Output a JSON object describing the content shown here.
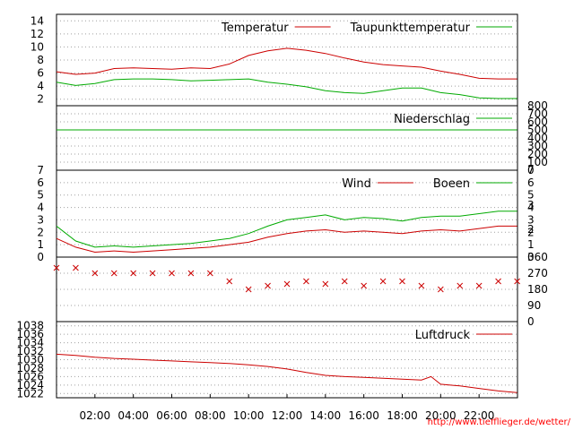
{
  "credit": "http://www.tiefflieger.de/wetter/",
  "colors": {
    "red": "#cc0000",
    "green": "#00aa00",
    "frame": "#000000",
    "grid": "#a0a0a0",
    "credit": "#ff0000"
  },
  "chart_data": [
    {
      "type": "line",
      "grid": true,
      "legend_position": "top-right",
      "ylim": [
        1,
        15
      ],
      "yticks": [
        "2",
        "4",
        "6",
        "8",
        "10",
        "12",
        "14"
      ],
      "x": [
        "00:00",
        "01:00",
        "02:00",
        "03:00",
        "04:00",
        "05:00",
        "06:00",
        "07:00",
        "08:00",
        "09:00",
        "10:00",
        "11:00",
        "12:00",
        "13:00",
        "14:00",
        "15:00",
        "16:00",
        "17:00",
        "18:00",
        "19:00",
        "20:00",
        "21:00",
        "22:00",
        "23:00",
        "23:59"
      ],
      "series": [
        {
          "name": "Temperatur",
          "color": "#cc0000",
          "values": [
            6.2,
            5.8,
            6.0,
            6.7,
            6.8,
            6.7,
            6.6,
            6.8,
            6.7,
            7.4,
            8.7,
            9.4,
            9.8,
            9.5,
            9.0,
            8.3,
            7.7,
            7.3,
            7.1,
            6.9,
            6.3,
            5.8,
            5.2,
            5.1,
            5.1
          ]
        },
        {
          "name": "Taupunkttemperatur",
          "color": "#00aa00",
          "values": [
            4.6,
            4.1,
            4.4,
            5.0,
            5.1,
            5.1,
            5.0,
            4.8,
            4.9,
            5.0,
            5.1,
            4.6,
            4.3,
            3.9,
            3.3,
            3.0,
            2.9,
            3.3,
            3.7,
            3.7,
            3.0,
            2.7,
            2.2,
            2.1,
            2.1
          ]
        }
      ]
    },
    {
      "type": "line",
      "grid": true,
      "legend_position": "top-right",
      "ylim": [
        0,
        800
      ],
      "yticks": [
        "0",
        "100",
        "200",
        "300",
        "400",
        "500",
        "600",
        "700",
        "800"
      ],
      "x": [
        "00:00",
        "23:59"
      ],
      "series": [
        {
          "name": "Niederschlag",
          "color": "#00aa00",
          "values": [
            500,
            500
          ]
        }
      ]
    },
    {
      "type": "line",
      "grid": true,
      "legend_position": "top-right",
      "ylim": [
        0,
        7
      ],
      "yticks": [
        "0",
        "1",
        "2",
        "3",
        "4",
        "5",
        "6",
        "7"
      ],
      "right_ticks": [
        "2",
        "3"
      ],
      "x": [
        "00:00",
        "01:00",
        "02:00",
        "03:00",
        "04:00",
        "05:00",
        "06:00",
        "07:00",
        "08:00",
        "09:00",
        "10:00",
        "11:00",
        "12:00",
        "13:00",
        "14:00",
        "15:00",
        "16:00",
        "17:00",
        "18:00",
        "19:00",
        "20:00",
        "21:00",
        "22:00",
        "23:00",
        "23:59"
      ],
      "series": [
        {
          "name": "Wind",
          "color": "#cc0000",
          "values": [
            1.5,
            0.8,
            0.4,
            0.5,
            0.4,
            0.5,
            0.6,
            0.7,
            0.8,
            1.0,
            1.2,
            1.6,
            1.9,
            2.1,
            2.2,
            2.0,
            2.1,
            2.0,
            1.9,
            2.1,
            2.2,
            2.1,
            2.3,
            2.5,
            2.5
          ]
        },
        {
          "name": "Boeen",
          "color": "#00aa00",
          "values": [
            2.5,
            1.3,
            0.8,
            0.9,
            0.8,
            0.9,
            1.0,
            1.1,
            1.3,
            1.5,
            1.9,
            2.5,
            3.0,
            3.2,
            3.4,
            3.0,
            3.2,
            3.1,
            2.9,
            3.2,
            3.3,
            3.3,
            3.5,
            3.7,
            3.7
          ]
        }
      ]
    },
    {
      "type": "scatter",
      "grid": true,
      "ylim": [
        0,
        360
      ],
      "yticks": [
        "0",
        "90",
        "180",
        "270",
        "360"
      ],
      "x": [
        "00:00",
        "01:00",
        "02:00",
        "03:00",
        "04:00",
        "05:00",
        "06:00",
        "07:00",
        "08:00",
        "09:00",
        "10:00",
        "11:00",
        "12:00",
        "13:00",
        "14:00",
        "15:00",
        "16:00",
        "17:00",
        "18:00",
        "19:00",
        "20:00",
        "21:00",
        "22:00",
        "23:00",
        "23:59"
      ],
      "series": [
        {
          "color": "#cc0000",
          "values": [
            300,
            300,
            270,
            270,
            270,
            270,
            270,
            270,
            270,
            225,
            180,
            200,
            210,
            225,
            210,
            225,
            200,
            225,
            225,
            200,
            180,
            200,
            200,
            225,
            225
          ]
        }
      ]
    },
    {
      "type": "line",
      "grid": true,
      "legend_position": "top-right",
      "ylim": [
        1021,
        1039
      ],
      "yticks": [
        "1022",
        "1024",
        "1026",
        "1028",
        "1030",
        "1032",
        "1034",
        "1036",
        "1038"
      ],
      "xticks": [
        "02:00",
        "04:00",
        "06:00",
        "08:00",
        "10:00",
        "12:00",
        "14:00",
        "16:00",
        "18:00",
        "20:00",
        "22:00"
      ],
      "x": [
        "00:00",
        "01:00",
        "02:00",
        "03:00",
        "04:00",
        "05:00",
        "06:00",
        "07:00",
        "08:00",
        "09:00",
        "10:00",
        "11:00",
        "12:00",
        "13:00",
        "14:00",
        "15:00",
        "16:00",
        "17:00",
        "18:00",
        "19:00",
        "19:30",
        "20:00",
        "21:00",
        "22:00",
        "23:00",
        "23:59"
      ],
      "series": [
        {
          "name": "Luftdruck",
          "color": "#cc0000",
          "values": [
            1031.3,
            1031.0,
            1030.6,
            1030.3,
            1030.1,
            1029.9,
            1029.7,
            1029.5,
            1029.3,
            1029.1,
            1028.8,
            1028.4,
            1027.8,
            1027.0,
            1026.3,
            1026.0,
            1025.8,
            1025.6,
            1025.4,
            1025.2,
            1026.0,
            1024.2,
            1023.8,
            1023.2,
            1022.6,
            1022.2
          ]
        }
      ]
    }
  ]
}
